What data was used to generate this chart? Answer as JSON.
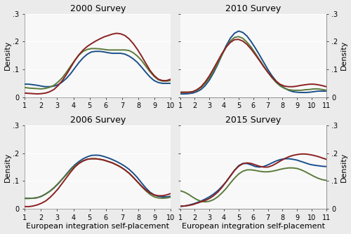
{
  "titles": [
    "2000 Survey",
    "2010 Survey",
    "2006 Survey",
    "2015 Survey"
  ],
  "xlabel": "European integration self-placement",
  "ylabel": "Density",
  "ylim": [
    0,
    0.3
  ],
  "yticks": [
    0,
    0.1,
    0.2,
    0.3
  ],
  "ytick_labels": [
    "0",
    ".1",
    ".2",
    ".3"
  ],
  "colors": {
    "blue": "#1B4F8A",
    "green": "#5B7A3A",
    "red": "#8B2020"
  },
  "background_color": "#EBEBEB",
  "panel_bg": "#F8F8F8",
  "grid_color": "#FFFFFF",
  "panels": {
    "2000": {
      "xticks": [
        1,
        2,
        3,
        4,
        5,
        6,
        7,
        8,
        9,
        10
      ],
      "xlim": [
        1,
        10
      ],
      "blue": [
        0.047,
        0.047,
        0.045,
        0.043,
        0.04,
        0.038,
        0.038,
        0.04,
        0.045,
        0.055,
        0.068,
        0.085,
        0.105,
        0.125,
        0.142,
        0.155,
        0.163,
        0.165,
        0.165,
        0.163,
        0.16,
        0.158,
        0.158,
        0.158,
        0.155,
        0.148,
        0.138,
        0.125,
        0.108,
        0.09,
        0.073,
        0.06,
        0.053,
        0.05,
        0.05,
        0.05
      ],
      "green": [
        0.035,
        0.033,
        0.032,
        0.031,
        0.03,
        0.032,
        0.036,
        0.043,
        0.055,
        0.07,
        0.09,
        0.112,
        0.133,
        0.152,
        0.165,
        0.172,
        0.175,
        0.175,
        0.174,
        0.172,
        0.17,
        0.17,
        0.17,
        0.17,
        0.17,
        0.168,
        0.16,
        0.148,
        0.132,
        0.112,
        0.092,
        0.075,
        0.063,
        0.058,
        0.058,
        0.06
      ],
      "red": [
        0.015,
        0.014,
        0.013,
        0.012,
        0.013,
        0.015,
        0.02,
        0.028,
        0.042,
        0.06,
        0.082,
        0.107,
        0.132,
        0.153,
        0.17,
        0.183,
        0.193,
        0.202,
        0.21,
        0.217,
        0.222,
        0.227,
        0.23,
        0.228,
        0.222,
        0.21,
        0.193,
        0.172,
        0.148,
        0.122,
        0.097,
        0.078,
        0.065,
        0.06,
        0.06,
        0.065
      ]
    },
    "2006": {
      "xticks": [
        1,
        2,
        3,
        4,
        5,
        6,
        7,
        8,
        9,
        10
      ],
      "xlim": [
        1,
        10
      ],
      "blue": [
        0.038,
        0.038,
        0.038,
        0.04,
        0.045,
        0.053,
        0.063,
        0.075,
        0.09,
        0.107,
        0.125,
        0.143,
        0.158,
        0.17,
        0.18,
        0.187,
        0.192,
        0.193,
        0.192,
        0.188,
        0.183,
        0.177,
        0.17,
        0.162,
        0.153,
        0.142,
        0.128,
        0.112,
        0.093,
        0.075,
        0.06,
        0.05,
        0.045,
        0.043,
        0.043,
        0.045
      ],
      "green": [
        0.037,
        0.037,
        0.038,
        0.04,
        0.045,
        0.053,
        0.063,
        0.076,
        0.091,
        0.107,
        0.123,
        0.14,
        0.154,
        0.165,
        0.173,
        0.178,
        0.18,
        0.18,
        0.178,
        0.175,
        0.17,
        0.165,
        0.158,
        0.15,
        0.14,
        0.128,
        0.113,
        0.097,
        0.08,
        0.065,
        0.052,
        0.043,
        0.039,
        0.038,
        0.039,
        0.042
      ],
      "red": [
        0.008,
        0.008,
        0.01,
        0.014,
        0.02,
        0.028,
        0.04,
        0.055,
        0.072,
        0.092,
        0.112,
        0.132,
        0.15,
        0.163,
        0.172,
        0.178,
        0.18,
        0.18,
        0.178,
        0.175,
        0.17,
        0.165,
        0.158,
        0.15,
        0.14,
        0.128,
        0.113,
        0.097,
        0.082,
        0.068,
        0.057,
        0.05,
        0.047,
        0.047,
        0.05,
        0.055
      ]
    },
    "2010": {
      "xticks": [
        1,
        2,
        3,
        4,
        5,
        6,
        7,
        8,
        9,
        10,
        11
      ],
      "xlim": [
        1,
        11
      ],
      "blue": [
        0.012,
        0.012,
        0.013,
        0.015,
        0.02,
        0.028,
        0.042,
        0.062,
        0.088,
        0.118,
        0.152,
        0.185,
        0.212,
        0.23,
        0.238,
        0.233,
        0.22,
        0.2,
        0.177,
        0.152,
        0.126,
        0.1,
        0.077,
        0.058,
        0.043,
        0.033,
        0.025,
        0.02,
        0.018,
        0.017,
        0.017,
        0.018,
        0.02,
        0.022,
        0.022,
        0.022
      ],
      "green": [
        0.018,
        0.018,
        0.018,
        0.02,
        0.025,
        0.035,
        0.05,
        0.07,
        0.095,
        0.122,
        0.152,
        0.18,
        0.202,
        0.215,
        0.218,
        0.212,
        0.198,
        0.18,
        0.158,
        0.135,
        0.112,
        0.09,
        0.07,
        0.053,
        0.04,
        0.032,
        0.027,
        0.025,
        0.025,
        0.025,
        0.027,
        0.028,
        0.03,
        0.03,
        0.028,
        0.025
      ],
      "red": [
        0.018,
        0.018,
        0.018,
        0.02,
        0.027,
        0.038,
        0.055,
        0.077,
        0.103,
        0.13,
        0.157,
        0.18,
        0.197,
        0.207,
        0.208,
        0.202,
        0.19,
        0.173,
        0.153,
        0.132,
        0.11,
        0.09,
        0.072,
        0.057,
        0.046,
        0.04,
        0.038,
        0.038,
        0.04,
        0.043,
        0.045,
        0.047,
        0.047,
        0.045,
        0.042,
        0.038
      ]
    },
    "2015": {
      "xticks": [
        1,
        2,
        3,
        4,
        5,
        6,
        7,
        8,
        9,
        10,
        11
      ],
      "xlim": [
        1,
        11
      ],
      "blue": [
        0.008,
        0.01,
        0.013,
        0.017,
        0.022,
        0.028,
        0.035,
        0.043,
        0.053,
        0.065,
        0.08,
        0.097,
        0.117,
        0.138,
        0.155,
        0.163,
        0.163,
        0.158,
        0.152,
        0.15,
        0.152,
        0.158,
        0.165,
        0.172,
        0.177,
        0.18,
        0.18,
        0.178,
        0.175,
        0.17,
        0.165,
        0.16,
        0.157,
        0.155,
        0.153,
        0.152
      ],
      "green": [
        0.065,
        0.06,
        0.052,
        0.042,
        0.033,
        0.027,
        0.025,
        0.027,
        0.033,
        0.043,
        0.057,
        0.073,
        0.092,
        0.11,
        0.125,
        0.135,
        0.14,
        0.14,
        0.138,
        0.135,
        0.133,
        0.133,
        0.135,
        0.138,
        0.142,
        0.145,
        0.147,
        0.147,
        0.145,
        0.14,
        0.133,
        0.125,
        0.117,
        0.11,
        0.105,
        0.102
      ],
      "red": [
        0.01,
        0.01,
        0.012,
        0.015,
        0.02,
        0.025,
        0.03,
        0.037,
        0.047,
        0.06,
        0.077,
        0.097,
        0.118,
        0.138,
        0.153,
        0.162,
        0.165,
        0.163,
        0.158,
        0.153,
        0.15,
        0.15,
        0.155,
        0.163,
        0.172,
        0.18,
        0.187,
        0.192,
        0.195,
        0.197,
        0.197,
        0.195,
        0.192,
        0.188,
        0.183,
        0.178
      ]
    }
  },
  "title_fontsize": 9,
  "axis_fontsize": 8,
  "tick_fontsize": 7,
  "line_width": 1.4
}
